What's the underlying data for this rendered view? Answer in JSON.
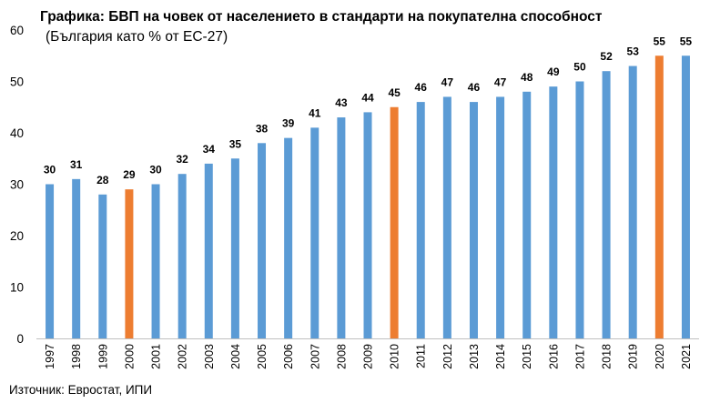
{
  "chart_data": {
    "type": "bar",
    "title": "Графика: БВП на човек от населението в стандарти на покупателна способност",
    "subtitle": "(България като % от ЕС-27)",
    "xlabel": "",
    "ylabel": "",
    "ylim": [
      0,
      60
    ],
    "yticks": [
      0,
      10,
      20,
      30,
      40,
      50,
      60
    ],
    "grid": false,
    "legend": "none",
    "categories": [
      "1997",
      "1998",
      "1999",
      "2000",
      "2001",
      "2002",
      "2003",
      "2004",
      "2005",
      "2006",
      "2007",
      "2008",
      "2009",
      "2010",
      "2011",
      "2012",
      "2013",
      "2014",
      "2015",
      "2016",
      "2017",
      "2018",
      "2019",
      "2020",
      "2021"
    ],
    "values": [
      30,
      31,
      28,
      29,
      30,
      32,
      34,
      35,
      38,
      39,
      41,
      43,
      44,
      45,
      46,
      47,
      46,
      47,
      48,
      49,
      50,
      52,
      53,
      55,
      55
    ],
    "highlight": [
      "2000",
      "2010",
      "2020"
    ],
    "colors": {
      "default": "#5b9bd5",
      "highlight": "#ed7d31",
      "axis": "#bfbfbf"
    }
  },
  "source": "Източник: Евростат, ИПИ"
}
